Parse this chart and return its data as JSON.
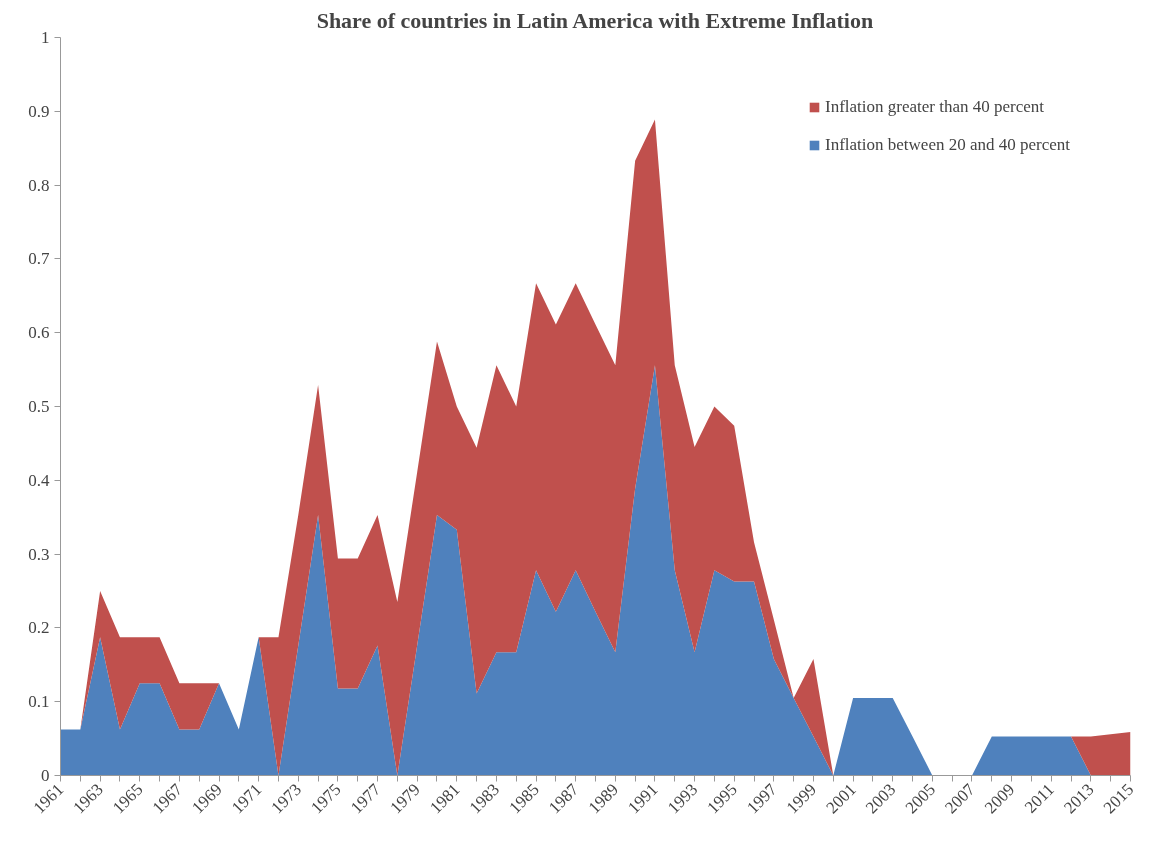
{
  "chart_data": {
    "type": "area",
    "stacked": true,
    "title": "Share of countries in Latin America with Extreme Inflation",
    "x": [
      1961,
      1962,
      1963,
      1964,
      1965,
      1966,
      1967,
      1968,
      1969,
      1970,
      1971,
      1972,
      1973,
      1974,
      1975,
      1976,
      1977,
      1978,
      1979,
      1980,
      1981,
      1982,
      1983,
      1984,
      1985,
      1986,
      1987,
      1988,
      1989,
      1990,
      1991,
      1992,
      1993,
      1994,
      1995,
      1996,
      1997,
      1998,
      1999,
      2000,
      2001,
      2002,
      2003,
      2004,
      2005,
      2006,
      2007,
      2008,
      2009,
      2010,
      2011,
      2012,
      2013,
      2014,
      2015
    ],
    "series": [
      {
        "name": "Inflation between 20 and 40 percent",
        "color": "#4f81bd",
        "values": [
          0.0625,
          0.0625,
          0.1875,
          0.0625,
          0.125,
          0.125,
          0.0625,
          0.0625,
          0.125,
          0.0625,
          0.1875,
          0,
          0.176,
          0.353,
          0.118,
          0.118,
          0.176,
          0,
          0.176,
          0.353,
          0.333,
          0.111,
          0.167,
          0.167,
          0.278,
          0.222,
          0.278,
          0.222,
          0.167,
          0.389,
          0.556,
          0.278,
          0.167,
          0.278,
          0.263,
          0.263,
          0.158,
          0.105,
          0.053,
          0,
          0.105,
          0.105,
          0.105,
          0.053,
          0,
          0,
          0,
          0.053,
          0.053,
          0.053,
          0.053,
          0.053,
          0,
          0,
          0
        ]
      },
      {
        "name": "Inflation greater than 40 percent",
        "color": "#c0504d",
        "values": [
          0,
          0,
          0.0625,
          0.125,
          0.0625,
          0.0625,
          0.0625,
          0.0625,
          0,
          0,
          0,
          0.1875,
          0.177,
          0.176,
          0.176,
          0.176,
          0.177,
          0.235,
          0.235,
          0.235,
          0.167,
          0.333,
          0.389,
          0.333,
          0.389,
          0.389,
          0.389,
          0.389,
          0.389,
          0.444,
          0.333,
          0.278,
          0.278,
          0.222,
          0.211,
          0.053,
          0.053,
          0,
          0.105,
          0,
          0,
          0,
          0,
          0,
          0,
          0,
          0,
          0,
          0,
          0,
          0,
          0,
          0.053,
          0.056,
          0.059
        ]
      }
    ],
    "xlim": [
      1961,
      2015
    ],
    "xticks": [
      1961,
      {
        "value": 1962,
        "label": null
      },
      1963,
      {
        "value": 1964,
        "label": null
      },
      1965,
      {
        "value": 1966,
        "label": null
      },
      1967,
      {
        "value": 1968,
        "label": null
      },
      1969,
      {
        "value": 1970,
        "label": null
      },
      1971,
      {
        "value": 1972,
        "label": null
      },
      1973,
      {
        "value": 1974,
        "label": null
      },
      1975,
      {
        "value": 1976,
        "label": null
      },
      1977,
      {
        "value": 1978,
        "label": null
      },
      1979,
      {
        "value": 1980,
        "label": null
      },
      1981,
      {
        "value": 1982,
        "label": null
      },
      1983,
      {
        "value": 1984,
        "label": null
      },
      1985,
      {
        "value": 1986,
        "label": null
      },
      1987,
      {
        "value": 1988,
        "label": null
      },
      1989,
      {
        "value": 1990,
        "label": null
      },
      1991,
      {
        "value": 1992,
        "label": null
      },
      1993,
      {
        "value": 1994,
        "label": null
      },
      1995,
      {
        "value": 1996,
        "label": null
      },
      1997,
      {
        "value": 1998,
        "label": null
      },
      1999,
      {
        "value": 2000,
        "label": null
      },
      2001,
      {
        "value": 2002,
        "label": null
      },
      2003,
      {
        "value": 2004,
        "label": null
      },
      2005,
      {
        "value": 2006,
        "label": null
      },
      2007,
      {
        "value": 2008,
        "label": null
      },
      2009,
      {
        "value": 2010,
        "label": null
      },
      2011,
      {
        "value": 2012,
        "label": null
      },
      2013,
      {
        "value": 2014,
        "label": null
      },
      2015
    ],
    "ylim": [
      0,
      1
    ],
    "yticks": [
      0,
      0.1,
      0.2,
      0.3,
      0.4,
      0.5,
      0.6,
      0.7,
      0.8,
      0.9,
      1
    ],
    "grid": false,
    "legend": "top right"
  }
}
